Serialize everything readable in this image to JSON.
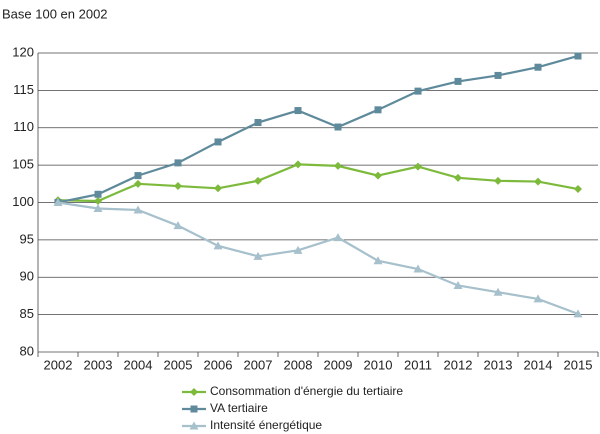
{
  "chart_data": {
    "type": "line",
    "title": "Base 100 en 2002",
    "categories": [
      "2002",
      "2003",
      "2004",
      "2005",
      "2006",
      "2007",
      "2008",
      "2009",
      "2010",
      "2011",
      "2012",
      "2013",
      "2014",
      "2015"
    ],
    "series": [
      {
        "name": "Consommation d'énergie du tertiaire",
        "color": "#7dba3c",
        "marker": "diamond",
        "values": [
          100.3,
          100.2,
          102.5,
          102.2,
          101.9,
          102.9,
          105.1,
          104.9,
          103.6,
          104.8,
          103.3,
          102.9,
          102.8,
          101.8
        ]
      },
      {
        "name": "VA tertiaire",
        "color": "#5f8a9b",
        "marker": "square",
        "values": [
          100,
          101.1,
          103.6,
          105.3,
          108.1,
          110.7,
          112.3,
          110.1,
          112.4,
          114.9,
          116.2,
          117,
          118.1,
          119.6
        ]
      },
      {
        "name": "Intensité énergétique",
        "color": "#a6c0cc",
        "marker": "triangle",
        "values": [
          100,
          99.2,
          99,
          96.9,
          94.2,
          92.8,
          93.6,
          95.3,
          92.2,
          91.1,
          88.9,
          88,
          87.1,
          85.1
        ]
      }
    ],
    "ylim": [
      80,
      120
    ],
    "yticks": [
      80,
      85,
      90,
      95,
      100,
      105,
      110,
      115,
      120
    ],
    "grid": true
  }
}
